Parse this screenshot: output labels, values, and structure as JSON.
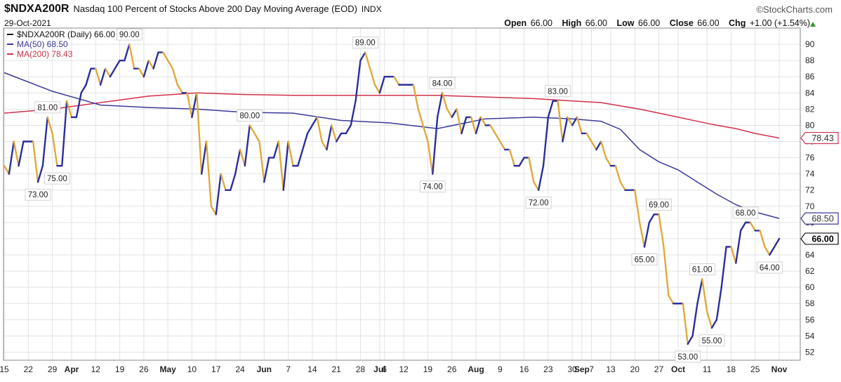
{
  "header": {
    "symbol": "$NDXA200R",
    "title": "Nasdaq 100 Percent of Stocks Above 200 Day Moving Average (EOD)",
    "exchange": "INDX",
    "brand": "©StockCharts.com",
    "date": "29-Oct-2021",
    "open_label": "Open",
    "open": "66.00",
    "high_label": "High",
    "high": "66.00",
    "low_label": "Low",
    "low": "66.00",
    "close_label": "Close",
    "close": "66.00",
    "chg_label": "Chg",
    "chg": "+1.00 (+1.54%)"
  },
  "colors": {
    "price_up": "#2b2f9e",
    "price_down": "#e0a93a",
    "ma50": "#3a3a9a",
    "ma200": "#d0304a",
    "grid": "#e3e3e3"
  },
  "chart_data": {
    "type": "line",
    "ylim": [
      51,
      92
    ],
    "yticks": [
      52,
      54,
      56,
      58,
      60,
      62,
      64,
      66,
      68,
      70,
      72,
      74,
      76,
      78,
      80,
      82,
      84,
      86,
      88,
      90
    ],
    "xlabels": [
      {
        "label": "15",
        "i": 0
      },
      {
        "label": "22",
        "i": 5
      },
      {
        "label": "29",
        "i": 10
      },
      {
        "label": "Apr",
        "i": 14
      },
      {
        "label": "12",
        "i": 19
      },
      {
        "label": "19",
        "i": 24
      },
      {
        "label": "26",
        "i": 29
      },
      {
        "label": "May",
        "i": 34
      },
      {
        "label": "10",
        "i": 39
      },
      {
        "label": "17",
        "i": 44
      },
      {
        "label": "24",
        "i": 49
      },
      {
        "label": "Jun",
        "i": 54
      },
      {
        "label": "7",
        "i": 59
      },
      {
        "label": "14",
        "i": 64
      },
      {
        "label": "21",
        "i": 69
      },
      {
        "label": "28",
        "i": 74
      },
      {
        "label": "Jul",
        "i": 78
      },
      {
        "label": "6",
        "i": 79
      },
      {
        "label": "12",
        "i": 83
      },
      {
        "label": "19",
        "i": 88
      },
      {
        "label": "26",
        "i": 93
      },
      {
        "label": "Aug",
        "i": 98
      },
      {
        "label": "9",
        "i": 103
      },
      {
        "label": "16",
        "i": 108
      },
      {
        "label": "23",
        "i": 113
      },
      {
        "label": "30",
        "i": 118
      },
      {
        "label": "Sep",
        "i": 120
      },
      {
        "label": "7",
        "i": 122
      },
      {
        "label": "13",
        "i": 126
      },
      {
        "label": "20",
        "i": 131
      },
      {
        "label": "27",
        "i": 136
      },
      {
        "label": "Oct",
        "i": 140
      },
      {
        "label": "11",
        "i": 146
      },
      {
        "label": "18",
        "i": 151
      },
      {
        "label": "25",
        "i": 156
      },
      {
        "label": "Nov",
        "i": 161
      }
    ],
    "series": [
      {
        "name": "$NDXA200R (Daily) 66.00",
        "values": [
          75,
          74,
          78,
          75,
          78,
          78,
          78,
          73,
          75,
          81,
          79,
          75,
          75,
          83,
          81,
          81,
          84,
          85,
          87,
          87,
          85,
          87,
          86,
          87,
          88,
          88,
          90,
          87,
          87,
          86,
          88,
          87,
          89,
          89,
          88,
          87,
          85,
          84,
          84,
          81,
          84,
          74,
          78,
          70,
          69,
          74,
          72,
          72,
          74,
          77,
          75,
          80,
          79,
          78,
          73,
          76,
          76,
          78,
          72,
          78,
          75,
          75,
          77,
          79,
          80,
          81,
          78,
          77,
          80,
          78,
          79,
          79,
          80,
          83,
          88,
          89,
          87,
          85,
          84,
          86,
          86,
          86,
          85,
          85,
          85,
          85,
          82,
          80,
          78,
          74,
          81,
          84,
          82,
          81,
          82,
          79,
          81,
          81,
          79,
          81,
          80,
          80,
          79,
          78,
          77,
          77,
          75,
          75,
          76,
          76,
          73,
          72,
          75,
          81,
          83,
          83,
          78,
          81,
          80,
          81,
          79,
          79,
          78,
          77,
          78,
          76,
          75,
          75,
          73,
          72,
          72,
          72,
          68,
          65,
          68,
          69,
          69,
          65,
          59,
          58,
          58,
          58,
          53,
          54,
          58,
          61,
          57,
          55,
          56,
          60,
          65,
          65,
          63,
          67,
          68,
          68,
          67,
          67,
          65,
          64,
          65,
          66
        ],
        "data_labels": [
          {
            "i": 7,
            "value": "73.00",
            "pos": "below"
          },
          {
            "i": 9,
            "value": "81.00",
            "pos": "above"
          },
          {
            "i": 11,
            "value": "75.00",
            "pos": "below"
          },
          {
            "i": 26,
            "value": "90.00",
            "pos": "above"
          },
          {
            "i": 51,
            "value": "80.00",
            "pos": "above"
          },
          {
            "i": 75,
            "value": "89.00",
            "pos": "above"
          },
          {
            "i": 89,
            "value": "74.00",
            "pos": "below"
          },
          {
            "i": 91,
            "value": "84.00",
            "pos": "above"
          },
          {
            "i": 111,
            "value": "72.00",
            "pos": "below"
          },
          {
            "i": 115,
            "value": "83.00",
            "pos": "above"
          },
          {
            "i": 133,
            "value": "65.00",
            "pos": "below"
          },
          {
            "i": 136,
            "value": "69.00",
            "pos": "above"
          },
          {
            "i": 142,
            "value": "53.00",
            "pos": "below"
          },
          {
            "i": 145,
            "value": "61.00",
            "pos": "above"
          },
          {
            "i": 147,
            "value": "55.00",
            "pos": "below"
          },
          {
            "i": 154,
            "value": "68.00",
            "pos": "above"
          },
          {
            "i": 159,
            "value": "64.00",
            "pos": "below"
          }
        ]
      },
      {
        "name": "MA(50) 68.50",
        "points": [
          [
            0,
            86.5
          ],
          [
            10,
            84.2
          ],
          [
            20,
            82.5
          ],
          [
            30,
            82.2
          ],
          [
            40,
            82
          ],
          [
            50,
            81.6
          ],
          [
            60,
            81.5
          ],
          [
            70,
            80.6
          ],
          [
            80,
            80.3
          ],
          [
            90,
            79.6
          ],
          [
            100,
            80.8
          ],
          [
            110,
            81
          ],
          [
            118,
            80.8
          ],
          [
            124,
            80.5
          ],
          [
            128,
            79.5
          ],
          [
            132,
            77
          ],
          [
            136,
            75.5
          ],
          [
            140,
            74.5
          ],
          [
            144,
            73
          ],
          [
            148,
            71.5
          ],
          [
            152,
            70.2
          ],
          [
            156,
            69.3
          ],
          [
            161,
            68.5
          ]
        ]
      },
      {
        "name": "MA(200) 78.43",
        "points": [
          [
            0,
            81.5
          ],
          [
            10,
            82
          ],
          [
            20,
            82.8
          ],
          [
            30,
            83.6
          ],
          [
            40,
            84
          ],
          [
            50,
            83.8
          ],
          [
            60,
            83.7
          ],
          [
            70,
            83.7
          ],
          [
            80,
            83.7
          ],
          [
            90,
            83.7
          ],
          [
            100,
            83.5
          ],
          [
            110,
            83.3
          ],
          [
            118,
            83
          ],
          [
            124,
            82.8
          ],
          [
            128,
            82.4
          ],
          [
            132,
            82
          ],
          [
            136,
            81.5
          ],
          [
            140,
            81
          ],
          [
            144,
            80.5
          ],
          [
            148,
            80
          ],
          [
            152,
            79.6
          ],
          [
            156,
            79
          ],
          [
            161,
            78.43
          ]
        ]
      }
    ],
    "axis_tags": [
      {
        "series": "MA(200)",
        "value": "78.43"
      },
      {
        "series": "MA(50)",
        "value": "68.50"
      },
      {
        "series": "price",
        "value": "66.00"
      }
    ]
  }
}
